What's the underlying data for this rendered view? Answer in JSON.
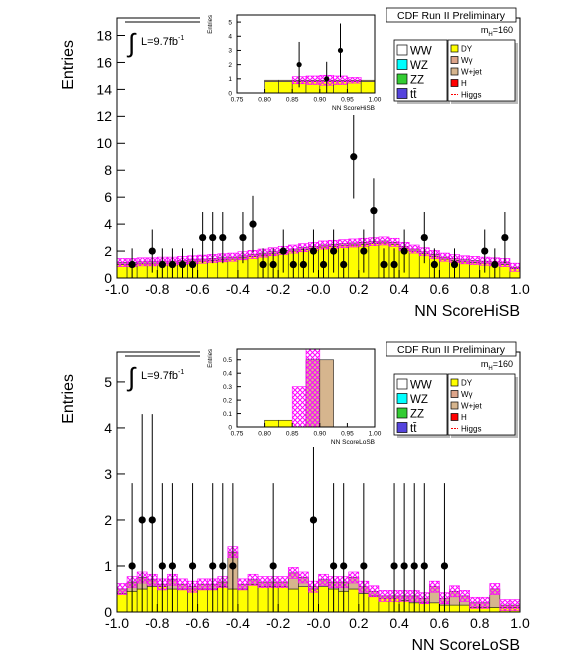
{
  "chart_data": [
    {
      "type": "histogram",
      "title": "CDF Run II Preliminary",
      "xlabel": "NN ScoreHiSB",
      "ylabel": "Entries",
      "luminosity": {
        "text": "L=9.7fb",
        "sup": "-1"
      },
      "mass": {
        "text": "m",
        "sub": "H",
        "suffix": "=160"
      },
      "bins": [
        -1,
        -0.95,
        -0.9,
        -0.85,
        -0.8,
        -0.75,
        -0.7,
        -0.65,
        -0.6,
        -0.55,
        -0.5,
        -0.45,
        -0.4,
        -0.35,
        -0.3,
        -0.25,
        -0.2,
        -0.15,
        -0.1,
        -0.05,
        0,
        0.05,
        0.1,
        0.15,
        0.2,
        0.25,
        0.3,
        0.35,
        0.4,
        0.45,
        0.5,
        0.55,
        0.6,
        0.65,
        0.7,
        0.75,
        0.8,
        0.85,
        0.9,
        0.95,
        1
      ],
      "xlim": [
        -1,
        1
      ],
      "ylim": [
        0,
        19.3
      ],
      "xticks": [
        {
          "value": -1,
          "label": "-1.0"
        },
        {
          "value": -0.8,
          "label": "-0.8"
        },
        {
          "value": -0.6,
          "label": "-0.6"
        },
        {
          "value": -0.4,
          "label": "-0.4"
        },
        {
          "value": -0.2,
          "label": "-0.2"
        },
        {
          "value": 0,
          "label": "-0.0"
        },
        0.2,
        0.4,
        0.6,
        0.8,
        {
          "value": 1,
          "label": "1.0"
        }
      ],
      "yticks": [
        0,
        2,
        4,
        6,
        8,
        10,
        12,
        14,
        16,
        18
      ],
      "series": [
        {
          "name": "WW",
          "color": "#ffffff"
        },
        {
          "name": "WZ",
          "color": "#00ffff"
        },
        {
          "name": "ZZ",
          "color": "#33cc33"
        },
        {
          "name": "tt̄",
          "color": "#5544dd"
        },
        {
          "name": "DY",
          "color": "#ffff00",
          "values": [
            1.0,
            1.0,
            1.05,
            1.05,
            1.1,
            1.1,
            1.15,
            1.2,
            1.25,
            1.3,
            1.35,
            1.4,
            1.5,
            1.6,
            1.7,
            1.8,
            1.9,
            2.0,
            2.1,
            2.2,
            2.3,
            2.35,
            2.4,
            2.45,
            2.5,
            2.55,
            2.6,
            2.5,
            2.2,
            2.0,
            1.8,
            1.6,
            1.4,
            1.3,
            1.2,
            1.15,
            1.1,
            1.05,
            1.0,
            0.7
          ]
        },
        {
          "name": "Wγ",
          "color": "#dda58a"
        },
        {
          "name": "W+jet",
          "color": "#d6b58e",
          "values": [
            0.15,
            0.15,
            0.15,
            0.15,
            0.15,
            0.15,
            0.15,
            0.15,
            0.15,
            0.15,
            0.15,
            0.15,
            0.15,
            0.15,
            0.15,
            0.15,
            0.15,
            0.15,
            0.15,
            0.15,
            0.15,
            0.15,
            0.15,
            0.15,
            0.15,
            0.15,
            0.15,
            0.15,
            0.15,
            0.15,
            0.15,
            0.15,
            0.15,
            0.15,
            0.15,
            0.15,
            0.15,
            0.15,
            0.15,
            0.1
          ]
        },
        {
          "name": "H",
          "color": "#ff0000"
        },
        {
          "name": "Higgs",
          "color": "#ff0000",
          "style": "line"
        }
      ],
      "band": {
        "color": "#ff00ff",
        "values": [
          0.3,
          0.3,
          0.3,
          0.3,
          0.3,
          0.3,
          0.3,
          0.3,
          0.3,
          0.3,
          0.3,
          0.3,
          0.3,
          0.3,
          0.3,
          0.3,
          0.3,
          0.3,
          0.3,
          0.3,
          0.3,
          0.3,
          0.3,
          0.3,
          0.3,
          0.3,
          0.3,
          0.3,
          0.3,
          0.3,
          0.3,
          0.3,
          0.3,
          0.3,
          0.3,
          0.3,
          0.3,
          0.3,
          0.3,
          0.3
        ]
      },
      "data": {
        "values": [
          null,
          1,
          null,
          2,
          1,
          1,
          1,
          1,
          3,
          3,
          3,
          null,
          3,
          4,
          1,
          1,
          2,
          1,
          1,
          2,
          1,
          2,
          1,
          9,
          2,
          5,
          1,
          1,
          2,
          null,
          3,
          1,
          null,
          1,
          null,
          null,
          2,
          1,
          3,
          null
        ],
        "errors": [
          null,
          1.2,
          null,
          1.6,
          1.2,
          1.2,
          1.2,
          1.2,
          1.9,
          1.9,
          1.9,
          null,
          1.9,
          2.1,
          1.2,
          1.2,
          1.6,
          1.2,
          1.2,
          1.6,
          1.2,
          1.6,
          1.2,
          3.1,
          1.6,
          2.4,
          1.2,
          1.2,
          1.6,
          null,
          1.9,
          1.2,
          null,
          1.2,
          null,
          null,
          1.6,
          1.2,
          1.9,
          null
        ]
      },
      "inset": {
        "xlabel": "NN ScoreHiSB",
        "ylabel": "Entries",
        "bins": [
          0.75,
          0.775,
          0.8,
          0.825,
          0.85,
          0.875,
          0.9,
          0.925,
          0.95,
          0.975,
          1
        ],
        "xlim": [
          0.75,
          1
        ],
        "ylim": [
          0,
          5.5
        ],
        "xticks": [
          0.75,
          {
            "value": 0.8,
            "label": "0.80"
          },
          0.85,
          {
            "value": 0.9,
            "label": "0.90"
          },
          0.95,
          {
            "value": 1,
            "label": "1.00"
          }
        ],
        "yticks": [
          0,
          1,
          2,
          3,
          4,
          5
        ],
        "series": [
          {
            "color": "#ffff00",
            "values": [
              0,
              0,
              0.8,
              0.8,
              0.8,
              0.8,
              0.8,
              0.8,
              0.8,
              0.8
            ]
          },
          {
            "color": "#d6b58e",
            "values": [
              0,
              0,
              0.1,
              0.1,
              0.1,
              0.1,
              0.1,
              0.1,
              0.1,
              0.1
            ]
          }
        ],
        "band": {
          "color": "#ff00ff",
          "values": [
            0,
            0,
            0,
            0,
            0.25,
            0.3,
            0.35,
            0.3,
            0.2,
            0
          ]
        },
        "data": {
          "values": [
            null,
            null,
            null,
            null,
            2,
            null,
            1,
            3,
            null,
            null
          ],
          "errors": [
            null,
            null,
            null,
            null,
            1.6,
            null,
            1.2,
            1.9,
            null,
            null
          ]
        }
      }
    },
    {
      "type": "histogram",
      "title": "CDF Run II Preliminary",
      "xlabel": "NN ScoreLoSB",
      "ylabel": "Entries",
      "luminosity": {
        "text": "L=9.7fb",
        "sup": "-1"
      },
      "mass": {
        "text": "m",
        "sub": "H",
        "suffix": "=160"
      },
      "bins": [
        -1,
        -0.95,
        -0.9,
        -0.85,
        -0.8,
        -0.75,
        -0.7,
        -0.65,
        -0.6,
        -0.55,
        -0.5,
        -0.45,
        -0.4,
        -0.35,
        -0.3,
        -0.25,
        -0.2,
        -0.15,
        -0.1,
        -0.05,
        0,
        0.05,
        0.1,
        0.15,
        0.2,
        0.25,
        0.3,
        0.35,
        0.4,
        0.45,
        0.5,
        0.55,
        0.6,
        0.65,
        0.7,
        0.75,
        0.8,
        0.85,
        0.9,
        0.95,
        1
      ],
      "xlim": [
        -1,
        1
      ],
      "ylim": [
        0,
        5.65
      ],
      "xticks": [
        {
          "value": -1,
          "label": "-1.0"
        },
        {
          "value": -0.8,
          "label": "-0.8"
        },
        {
          "value": -0.6,
          "label": "-0.6"
        },
        {
          "value": -0.4,
          "label": "-0.4"
        },
        {
          "value": -0.2,
          "label": "-0.2"
        },
        {
          "value": 0,
          "label": "-0.0"
        },
        0.2,
        0.4,
        0.6,
        0.8,
        {
          "value": 1,
          "label": "1.0"
        }
      ],
      "yticks": [
        0,
        1,
        2,
        3,
        4,
        5
      ],
      "series": [
        {
          "name": "WW",
          "color": "#ffffff"
        },
        {
          "name": "WZ",
          "color": "#00ffff"
        },
        {
          "name": "ZZ",
          "color": "#33cc33"
        },
        {
          "name": "tt̄",
          "color": "#5544dd"
        },
        {
          "name": "DY",
          "color": "#ffff00",
          "values": [
            0.4,
            0.45,
            0.5,
            0.55,
            0.55,
            0.5,
            0.5,
            0.5,
            0.5,
            0.5,
            0.55,
            0.5,
            0.5,
            0.6,
            0.55,
            0.55,
            0.55,
            0.5,
            0.55,
            0.5,
            0.55,
            0.5,
            0.45,
            0.5,
            0.4,
            0.35,
            0.3,
            0.3,
            0.25,
            0.2,
            0.2,
            0.2,
            0.15,
            0.15,
            0.15,
            0.1,
            0.1,
            0.1,
            0.1,
            0.1
          ]
        },
        {
          "name": "Wγ",
          "color": "#dda58a"
        },
        {
          "name": "W+jet",
          "color": "#d6b58e",
          "values": [
            0.1,
            0.2,
            0.25,
            0.15,
            0.05,
            0.2,
            0.1,
            0.05,
            0.1,
            0.1,
            0.1,
            0.8,
            0.1,
            0.1,
            0.1,
            0.1,
            0.1,
            0.35,
            0.2,
            0.05,
            0.15,
            0.15,
            0.2,
            0.25,
            0.15,
            0.1,
            0.05,
            0.05,
            0.1,
            0.15,
            0.1,
            0.35,
            0.15,
            0.3,
            0.2,
            0.1,
            0.1,
            0.4,
            0.05,
            0.05
          ]
        },
        {
          "name": "H",
          "color": "#ff0000"
        },
        {
          "name": "Higgs",
          "color": "#ff0000",
          "style": "line"
        }
      ],
      "band": {
        "color": "#ff00ff",
        "values": [
          0.12,
          0.12,
          0.12,
          0.12,
          0.12,
          0.12,
          0.12,
          0.12,
          0.12,
          0.12,
          0.12,
          0.12,
          0.12,
          0.12,
          0.12,
          0.12,
          0.12,
          0.12,
          0.12,
          0.12,
          0.12,
          0.12,
          0.12,
          0.12,
          0.12,
          0.12,
          0.12,
          0.12,
          0.12,
          0.12,
          0.12,
          0.12,
          0.12,
          0.12,
          0.12,
          0.12,
          0.12,
          0.12,
          0.12,
          0.12
        ]
      },
      "data": {
        "values": [
          null,
          1,
          2,
          2,
          1,
          1,
          null,
          1,
          null,
          1,
          1,
          1,
          null,
          null,
          null,
          1,
          null,
          null,
          null,
          2,
          null,
          1,
          1,
          null,
          1,
          null,
          null,
          1,
          1,
          1,
          1,
          null,
          1,
          null,
          null,
          null,
          null,
          null,
          null,
          null
        ],
        "errors": [
          null,
          1.8,
          2.3,
          2.3,
          1.8,
          1.8,
          null,
          1.8,
          null,
          1.8,
          1.8,
          1.8,
          null,
          null,
          null,
          1.8,
          null,
          null,
          null,
          2.3,
          null,
          1.8,
          1.8,
          null,
          1.8,
          null,
          null,
          1.8,
          1.8,
          1.8,
          1.8,
          null,
          1.8,
          null,
          null,
          null,
          null,
          null,
          null,
          null
        ]
      },
      "inset": {
        "xlabel": "NN ScoreLoSB",
        "ylabel": "Entries",
        "bins": [
          0.75,
          0.775,
          0.8,
          0.825,
          0.85,
          0.875,
          0.9,
          0.925,
          0.95,
          0.975,
          1
        ],
        "xlim": [
          0.75,
          1
        ],
        "ylim": [
          0,
          0.58
        ],
        "xticks": [
          0.75,
          {
            "value": 0.8,
            "label": "0.80"
          },
          0.85,
          {
            "value": 0.9,
            "label": "0.90"
          },
          0.95,
          {
            "value": 1,
            "label": "1.00"
          }
        ],
        "yticks": [
          0,
          0.1,
          0.2,
          0.3,
          0.4,
          0.5
        ],
        "series": [
          {
            "color": "#ffff00",
            "values": [
              0,
              0,
              0.05,
              0.05,
              0,
              0,
              0,
              0,
              0,
              0
            ]
          },
          {
            "color": "#d6b58e",
            "values": [
              0,
              0,
              0,
              0,
              0,
              0.5,
              0.5,
              0,
              0,
              0
            ]
          }
        ],
        "band": {
          "color": "#ff00ff",
          "values": [
            0,
            0,
            0,
            0,
            0.3,
            0.55,
            0,
            0,
            0,
            0
          ]
        }
      }
    }
  ]
}
